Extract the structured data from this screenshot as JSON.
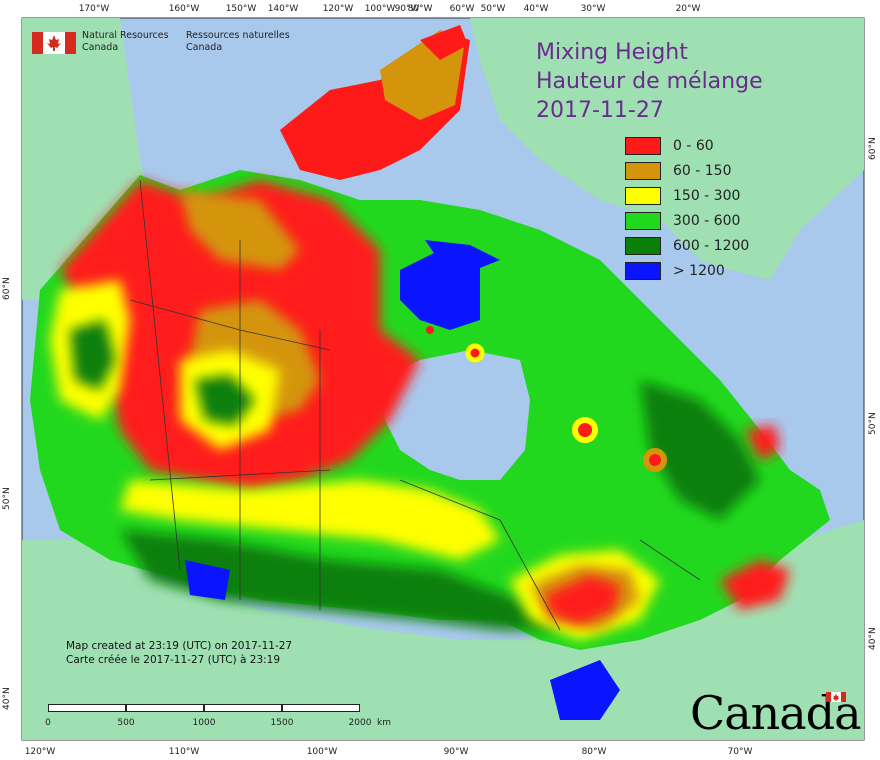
{
  "map": {
    "title_en": "Mixing Height",
    "title_fr": "Hauteur de mélange",
    "date": "2017-11-27"
  },
  "legend": [
    {
      "label": "0 - 60",
      "color": "#ff1a1a"
    },
    {
      "label": "60 - 150",
      "color": "#d4950c"
    },
    {
      "label": "150 - 300",
      "color": "#ffff00"
    },
    {
      "label": "300 - 600",
      "color": "#22d81e"
    },
    {
      "label": "600 - 1200",
      "color": "#0a7f0a"
    },
    {
      "label": "> 1200",
      "color": "#0a14ff"
    }
  ],
  "agency": {
    "en_line1": "Natural Resources",
    "en_line2": "Canada",
    "fr_line1": "Ressources naturelles",
    "fr_line2": "Canada"
  },
  "credits": {
    "line_en": "Map created at 23:19 (UTC) on 2017-11-27",
    "line_fr": "Carte créée le 2017-11-27 (UTC) à 23:19"
  },
  "scale": {
    "labels": [
      "0",
      "500",
      "1000",
      "1500",
      "2000"
    ],
    "unit": "km"
  },
  "graticule": {
    "top": [
      "170°W",
      "160°W",
      "150°W",
      "140°W",
      "120°W",
      "100°W",
      "90°W",
      "80°W",
      "60°W",
      "50°W",
      "40°W",
      "30°W",
      "20°W"
    ],
    "bottom": [
      "120°W",
      "110°W",
      "100°W",
      "90°W",
      "80°W",
      "70°W"
    ],
    "left": [
      "60°N",
      "50°N",
      "40°N"
    ],
    "right": [
      "60°N",
      "50°N",
      "40°N"
    ]
  },
  "wordmark": "Canada",
  "colors": {
    "ocean": "#a9c9ec",
    "foreign_land": "#9fe0b3"
  }
}
